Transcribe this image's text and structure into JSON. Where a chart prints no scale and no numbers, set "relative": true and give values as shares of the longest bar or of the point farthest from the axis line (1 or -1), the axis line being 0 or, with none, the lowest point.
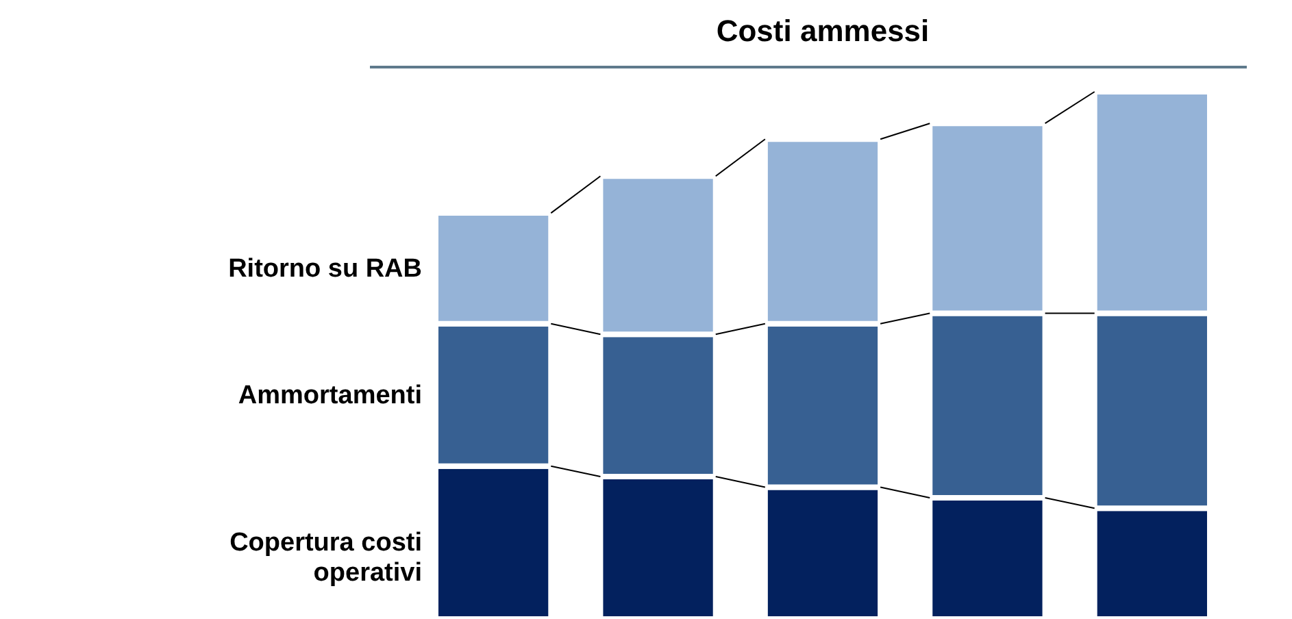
{
  "chart_data": {
    "type": "bar",
    "title": "Costi ammessi",
    "stacked": true,
    "relative": true,
    "legend": "left",
    "categories": [
      null,
      null,
      null,
      null,
      null
    ],
    "series": [
      {
        "name": "Copertura costi\noperativi",
        "color": "#03215e",
        "values": [
          0.29,
          0.27,
          0.25,
          0.23,
          0.21
        ]
      },
      {
        "name": "Ammortamenti",
        "color": "#376092",
        "values": [
          0.27,
          0.27,
          0.31,
          0.35,
          0.37
        ]
      },
      {
        "name": "Ritorno su RAB",
        "color": "#95b3d7",
        "values": [
          0.21,
          0.3,
          0.35,
          0.36,
          0.42
        ]
      }
    ]
  }
}
